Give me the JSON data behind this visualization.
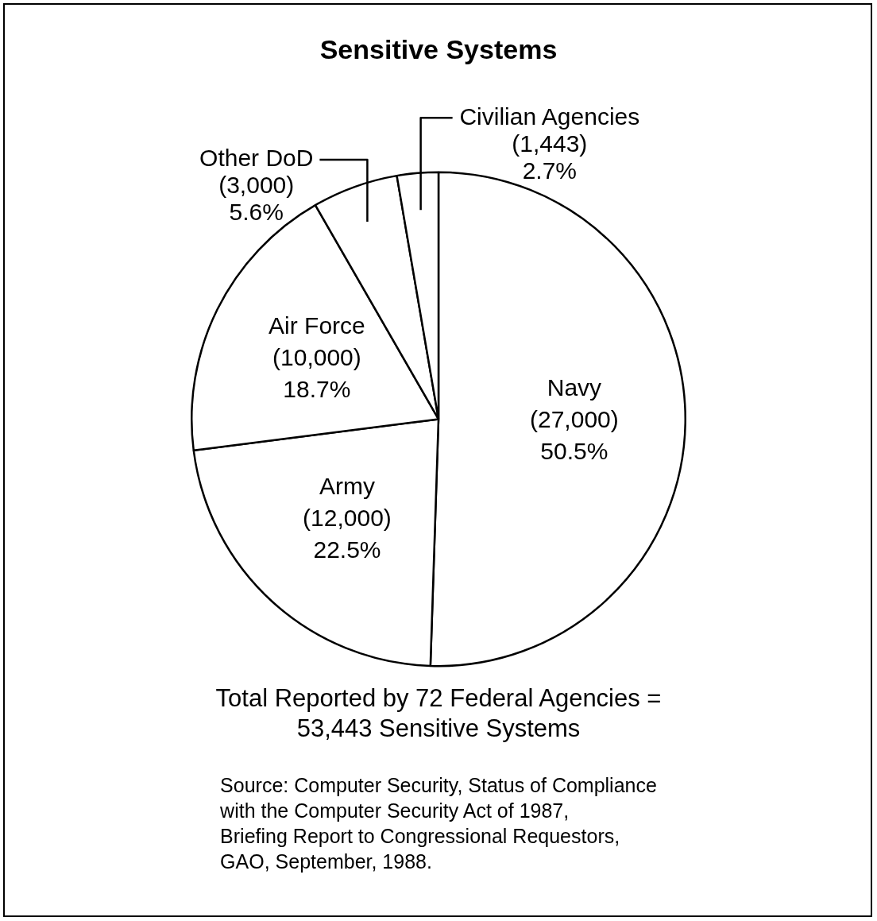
{
  "chart_data": {
    "type": "pie",
    "title": "Sensitive Systems",
    "categories": [
      "Navy",
      "Army",
      "Air Force",
      "Other DoD",
      "Civilian Agencies"
    ],
    "values": [
      27000,
      12000,
      10000,
      3000,
      1443
    ],
    "value_labels": [
      "(27,000)\n50.5%",
      "(12,000)\n22.5%",
      "(10,000)\n18.7%",
      "(3,000)\n5.6%",
      "(1,443)\n2.7%"
    ],
    "colors": [
      "#ffffff",
      "#ffffff",
      "#ffffff",
      "#ffffff",
      "#ffffff"
    ],
    "legend": false,
    "annotations": [
      "Total Reported by 72 Federal Agencies =\n53,443 Sensitive Systems",
      "Source: Computer Security, Status of Compliance\nwith the Computer Security Act of 1987,\nBriefing Report to Congressional Requestors,\nGAO, September, 1988."
    ]
  }
}
